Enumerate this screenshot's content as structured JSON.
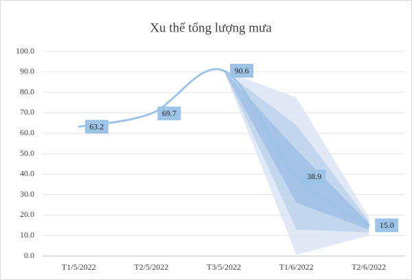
{
  "chart_data": {
    "type": "line",
    "title": "Xu thế tổng lượng mưa",
    "categories": [
      "T1/5/2022",
      "T2/5/2022",
      "T3/5/2022",
      "T1/6/2022",
      "T2/6/2022"
    ],
    "values": [
      63.2,
      69.7,
      90.6,
      38.9,
      15
    ],
    "value_labels": [
      "63.2",
      "69.7",
      "90.6",
      "38.9",
      "15.0"
    ],
    "color": "#9dc3e6",
    "forecast_bands": [
      {
        "color": "#dae5f3",
        "lower": [
          90.6,
          0.5,
          10
        ],
        "upper": [
          90.6,
          77.5,
          19
        ]
      },
      {
        "color": "#bcd2ec",
        "lower": [
          90.6,
          13,
          11.5
        ],
        "upper": [
          90.6,
          64,
          17
        ]
      },
      {
        "color": "#9fbfe4",
        "lower": [
          90.6,
          26,
          13
        ],
        "upper": [
          90.6,
          52,
          16
        ]
      }
    ],
    "band_start": 2,
    "ylim": [
      0,
      100
    ],
    "yticks": [
      {
        "value": 0,
        "label": "0.0"
      },
      {
        "value": 10,
        "label": "10.0"
      },
      {
        "value": 20,
        "label": "20.0"
      },
      {
        "value": 30,
        "label": "30.0"
      },
      {
        "value": 40,
        "label": "40.0"
      },
      {
        "value": 50,
        "label": "50.0"
      },
      {
        "value": 60,
        "label": "60.0"
      },
      {
        "value": 70,
        "label": "70.0"
      },
      {
        "value": 80,
        "label": "80.0"
      },
      {
        "value": 90,
        "label": "90.0"
      },
      {
        "value": 100,
        "label": "100.0"
      }
    ],
    "grid": true
  }
}
